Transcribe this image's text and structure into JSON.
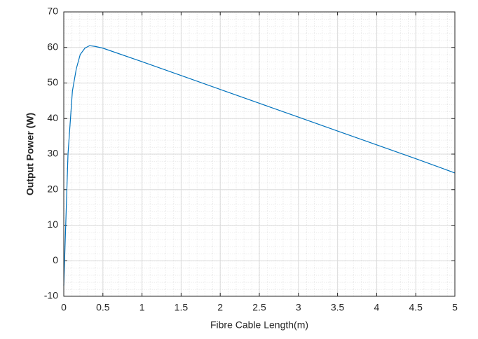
{
  "chart_data": {
    "type": "line",
    "x_label": "Fibre Cable Length(m)",
    "y_label": "Output Power (W)",
    "x": [
      0,
      0.054,
      0.11,
      0.16,
      0.21,
      0.27,
      0.33,
      0.4,
      0.5,
      1,
      1.5,
      2,
      2.5,
      3,
      3.5,
      4,
      4.5,
      5
    ],
    "series": [
      {
        "name": "Output Power",
        "color": "#0072bd",
        "values": [
          -7,
          30,
          47.7,
          54,
          58,
          59.8,
          60.5,
          60.3,
          59.8,
          56,
          52.1,
          48.2,
          44.3,
          40.4,
          36.5,
          32.6,
          28.7,
          24.7
        ]
      }
    ],
    "xlim": [
      0,
      5
    ],
    "xticks": [
      0,
      0.5,
      1,
      1.5,
      2,
      2.5,
      3,
      3.5,
      4,
      4.5,
      5
    ],
    "ylim": [
      -10,
      70
    ],
    "yticks": [
      -10,
      0,
      10,
      20,
      30,
      40,
      50,
      60,
      70
    ],
    "grid": true,
    "minor_grid": true
  }
}
